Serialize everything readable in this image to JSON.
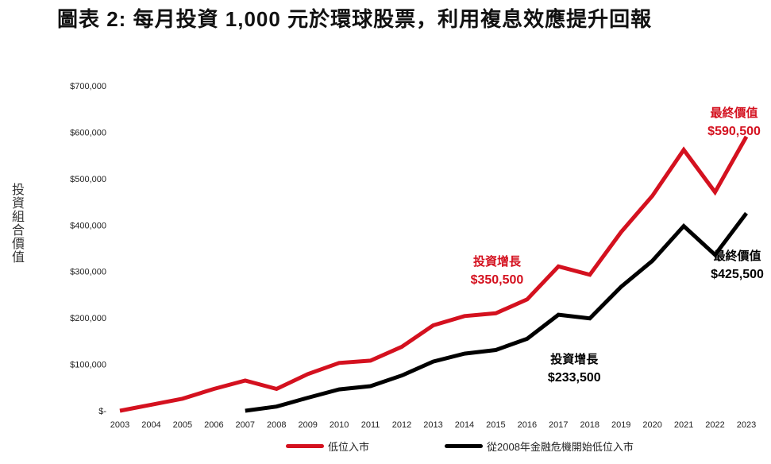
{
  "page_title": "圖表 2: 每月投資 1,000 元於環球股票，利用複息效應提升回報",
  "colors": {
    "red": "#d4111f",
    "black": "#000000",
    "axis_text": "#222222"
  },
  "chart_data": {
    "type": "line",
    "title": "圖表 2: 每月投資 1,000 元於環球股票，利用複息效應提升回報",
    "xlabel": "",
    "ylabel": "投資組合價值",
    "ylim": [
      0,
      700000
    ],
    "yticks": [
      0,
      100000,
      200000,
      300000,
      400000,
      500000,
      600000,
      700000
    ],
    "ytick_labels": [
      "$-",
      "$100,000",
      "$200,000",
      "$300,000",
      "$400,000",
      "$500,000",
      "$600,000",
      "$700,000"
    ],
    "categories": [
      "2003",
      "2004",
      "2005",
      "2006",
      "2007",
      "2008",
      "2009",
      "2010",
      "2011",
      "2012",
      "2013",
      "2014",
      "2015",
      "2016",
      "2017",
      "2018",
      "2019",
      "2020",
      "2021",
      "2022",
      "2023"
    ],
    "series": [
      {
        "name": "低位入市",
        "color": "#d4111f",
        "values": [
          0,
          13000,
          26000,
          47000,
          65000,
          47000,
          79000,
          103000,
          108000,
          138000,
          184000,
          204000,
          210000,
          240000,
          311000,
          293000,
          385000,
          463000,
          562000,
          471000,
          590500
        ]
      },
      {
        "name": "從2008年金融危機開始低位入市",
        "color": "#000000",
        "values": [
          null,
          null,
          null,
          null,
          0,
          9000,
          28000,
          46000,
          53000,
          76000,
          106000,
          123000,
          131000,
          155000,
          207000,
          199000,
          267000,
          323000,
          398000,
          336000,
          425500
        ]
      }
    ],
    "annotations": [
      {
        "id": "red-growth",
        "color": "#d4111f",
        "label": "投資增長",
        "value": "$350,500",
        "year": "2014",
        "y": 313000
      },
      {
        "id": "red-final",
        "color": "#d4111f",
        "label": "最終價值",
        "value": "$590,500",
        "year": "2022",
        "y": 633000
      },
      {
        "id": "black-growth",
        "color": "#000000",
        "label": "投資增長",
        "value": "$233,500",
        "year": "2017",
        "y": 103000
      },
      {
        "id": "black-final",
        "color": "#000000",
        "label": "最終價值",
        "value": "$425,500",
        "year": "2022",
        "y": 325000
      }
    ],
    "legend": {
      "position": "bottom"
    },
    "grid": false
  }
}
